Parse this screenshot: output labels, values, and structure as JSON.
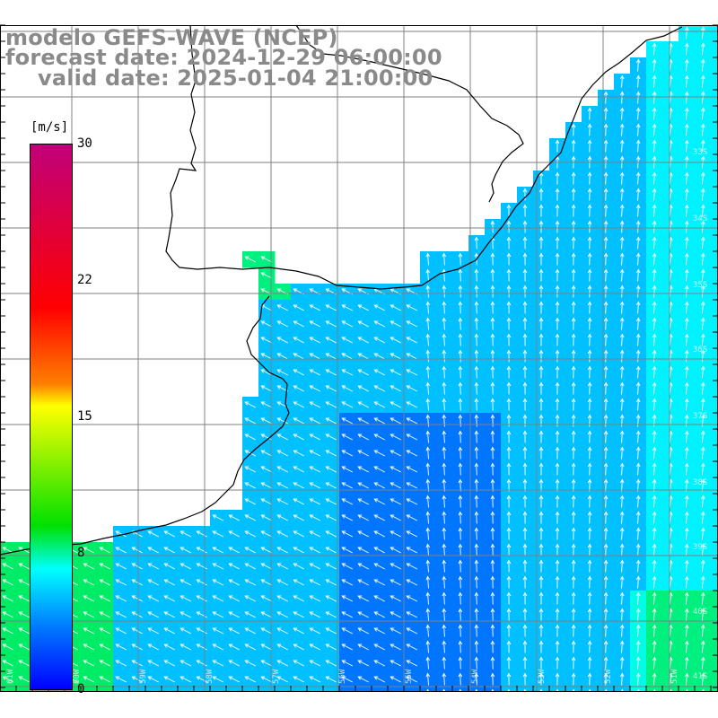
{
  "title": {
    "line1": "modelo GEFS-WAVE (NCEP)",
    "line2": "forecast date: 2024-12-29 06:00:00",
    "line3": "valid date: 2025-01-04 21:00:00"
  },
  "colorbar": {
    "units": "[m/s]",
    "ticks": [
      "30",
      "22",
      "15",
      "8",
      "0"
    ],
    "tick_values": [
      30,
      22,
      15,
      8,
      0
    ],
    "colors": [
      "#0000ff",
      "#0080ff",
      "#00ffff",
      "#00e000",
      "#ffff00",
      "#ff8000",
      "#ff0000",
      "#c00079"
    ]
  },
  "lat_labels": [
    "33S",
    "34S",
    "35S",
    "36S",
    "37S",
    "38S",
    "39S",
    "40S",
    "41S"
  ],
  "lon_labels": [
    "61W",
    "60W",
    "59W",
    "58W",
    "57W",
    "56W",
    "55W",
    "54W",
    "53W",
    "52W",
    "51W"
  ],
  "colors": {
    "land": "#ffffff",
    "coast": "#000000",
    "grid": "#808080",
    "title": "#8a8a8a",
    "arrow": "#ffffff"
  }
}
